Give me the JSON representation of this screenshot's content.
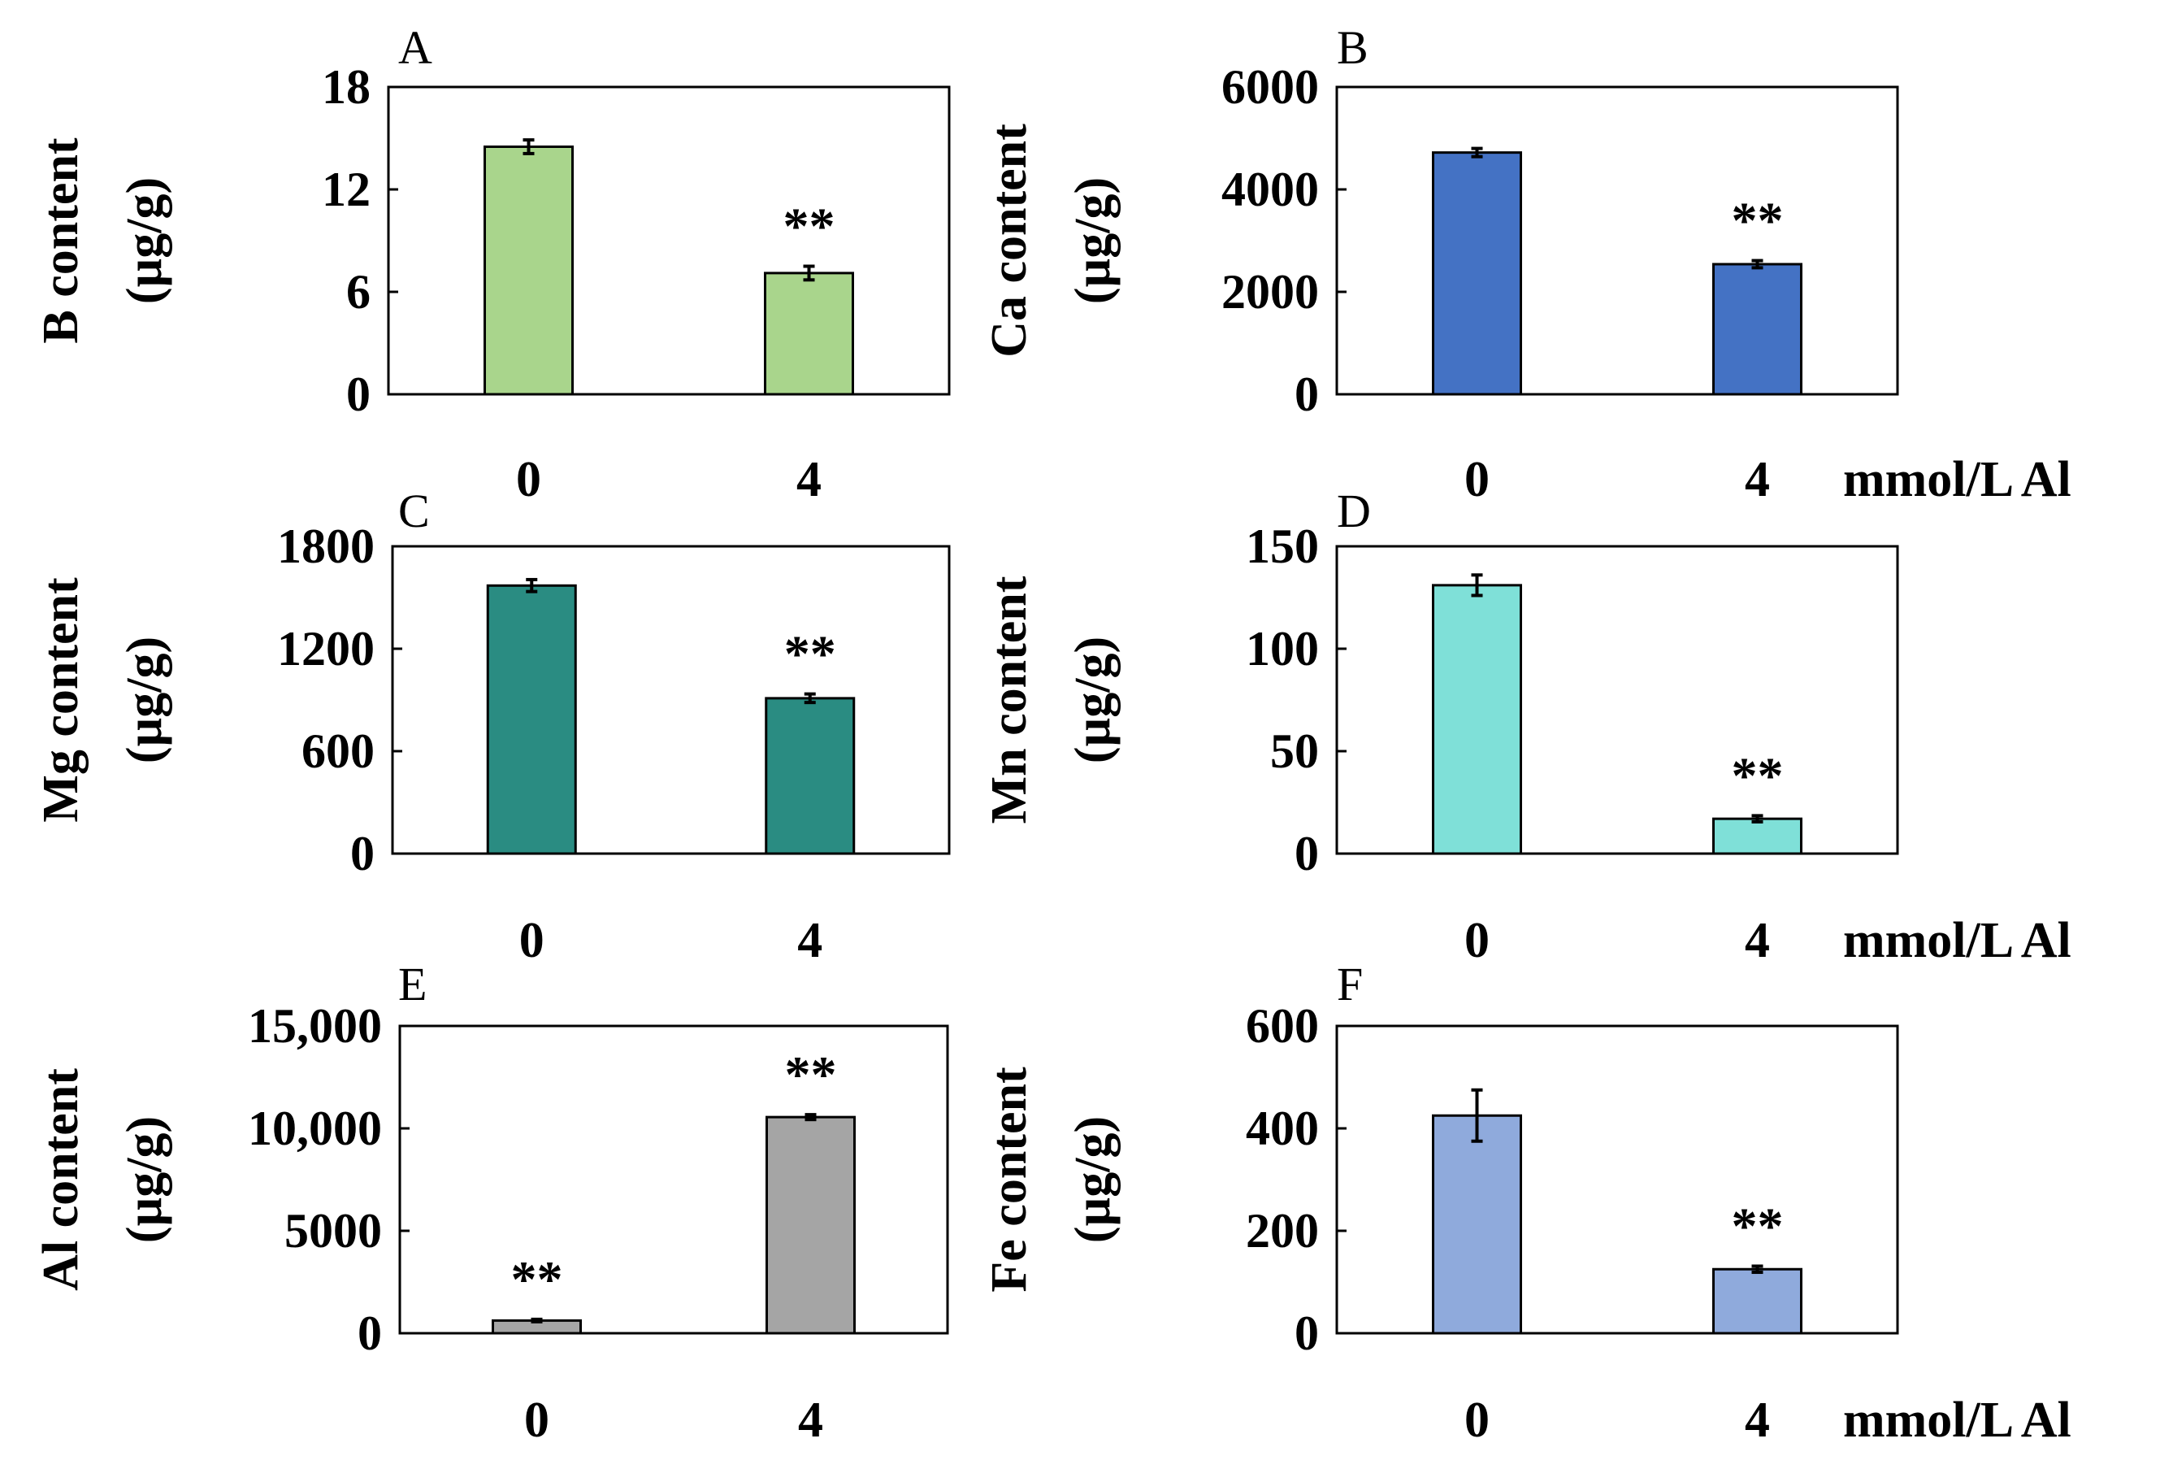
{
  "figure": {
    "x_unit_label": "mmol/L Al",
    "significance_marker": "**"
  },
  "chart_data": [
    {
      "panel": "A",
      "type": "bar",
      "ylabel_line1": "B content",
      "ylabel_line2": "(µg/g)",
      "categories": [
        "0",
        "4"
      ],
      "values": [
        14.5,
        7.1
      ],
      "errors": [
        0.4,
        0.4
      ],
      "ylim": [
        0,
        18
      ],
      "yticks": [
        0,
        6,
        12,
        18
      ],
      "ytick_labels": [
        "0",
        "6",
        "12",
        "18"
      ],
      "color": "#a9d58c",
      "significance": [
        "",
        "**"
      ]
    },
    {
      "panel": "B",
      "type": "bar",
      "ylabel_line1": "Ca content",
      "ylabel_line2": "(µg/g)",
      "categories": [
        "0",
        "4"
      ],
      "values": [
        4720,
        2540
      ],
      "errors": [
        80,
        70
      ],
      "ylim": [
        0,
        6000
      ],
      "yticks": [
        0,
        2000,
        4000,
        6000
      ],
      "ytick_labels": [
        "0",
        "2000",
        "4000",
        "6000"
      ],
      "color": "#4472c4",
      "significance": [
        "",
        "**"
      ]
    },
    {
      "panel": "C",
      "type": "bar",
      "ylabel_line1": "Mg content",
      "ylabel_line2": "(µg/g)",
      "categories": [
        "0",
        "4"
      ],
      "values": [
        1570,
        910
      ],
      "errors": [
        35,
        25
      ],
      "ylim": [
        0,
        1800
      ],
      "yticks": [
        0,
        600,
        1200,
        1800
      ],
      "ytick_labels": [
        "0",
        "600",
        "1200",
        "1800"
      ],
      "color": "#2a8c82",
      "significance": [
        "",
        "**"
      ]
    },
    {
      "panel": "D",
      "type": "bar",
      "ylabel_line1": "Mn content",
      "ylabel_line2": "(µg/g)",
      "categories": [
        "0",
        "4"
      ],
      "values": [
        131,
        17
      ],
      "errors": [
        5,
        1.5
      ],
      "ylim": [
        0,
        150
      ],
      "yticks": [
        0,
        50,
        100,
        150
      ],
      "ytick_labels": [
        "0",
        "50",
        "100",
        "150"
      ],
      "color": "#7fe0d8",
      "significance": [
        "",
        "**"
      ]
    },
    {
      "panel": "E",
      "type": "bar",
      "ylabel_line1": "Al content",
      "ylabel_line2": "(µg/g)",
      "categories": [
        "0",
        "4"
      ],
      "values": [
        620,
        10550
      ],
      "errors": [
        60,
        120
      ],
      "ylim": [
        0,
        15000
      ],
      "yticks": [
        0,
        5000,
        10000,
        15000
      ],
      "ytick_labels": [
        "0",
        "5000",
        "10,000",
        "15,000"
      ],
      "color": "#a5a5a5",
      "significance": [
        "**",
        ""
      ],
      "significance_on_other_bar": true
    },
    {
      "panel": "F",
      "type": "bar",
      "ylabel_line1": "Fe content",
      "ylabel_line2": "(µg/g)",
      "categories": [
        "0",
        "4"
      ],
      "values": [
        425,
        125
      ],
      "errors": [
        50,
        6
      ],
      "ylim": [
        0,
        600
      ],
      "yticks": [
        0,
        200,
        400,
        600
      ],
      "ytick_labels": [
        "0",
        "200",
        "400",
        "600"
      ],
      "color": "#8faadc",
      "significance": [
        "",
        "**"
      ]
    }
  ]
}
